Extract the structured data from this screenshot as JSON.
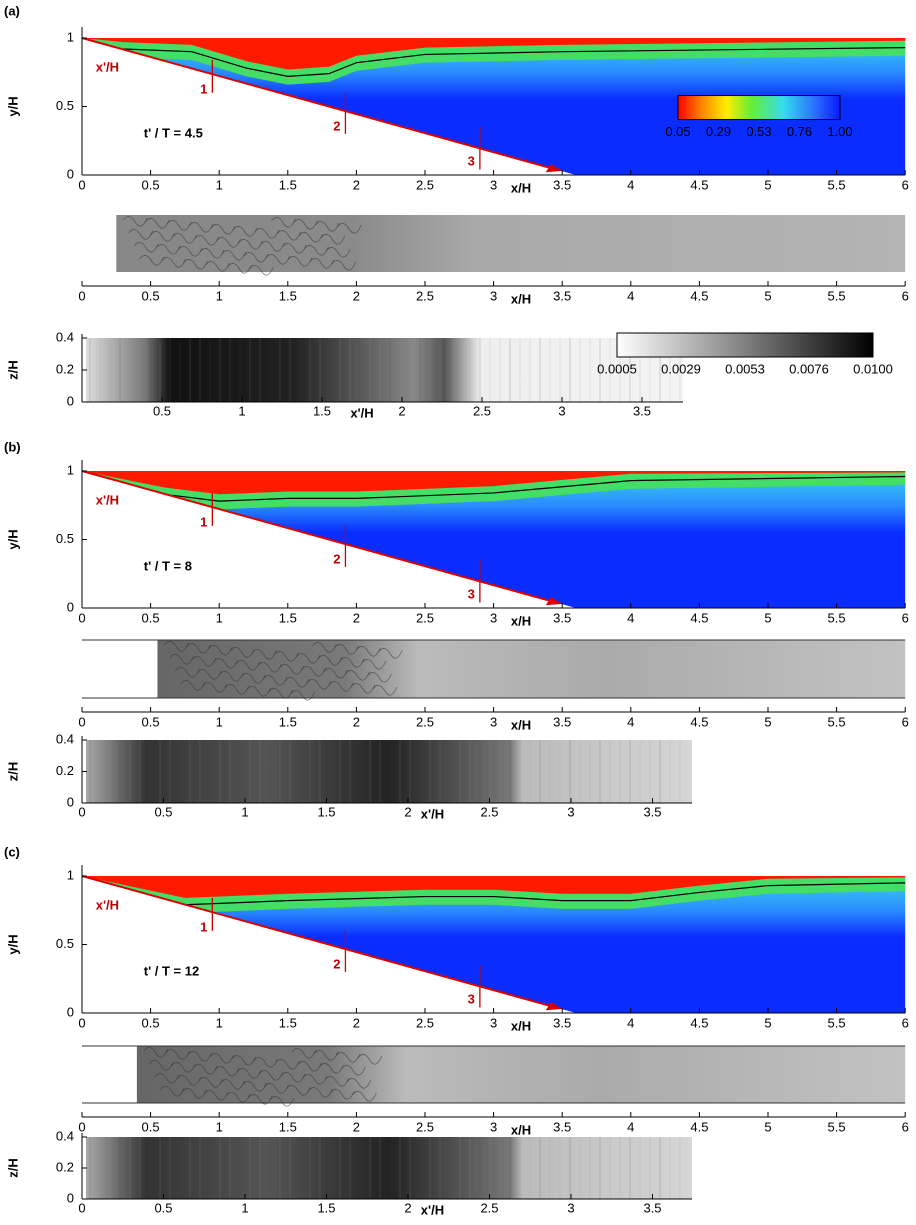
{
  "panels": [
    {
      "label": "(a)",
      "time_label": "t' / T = 4.5",
      "contour": {
        "y_label": "y/H",
        "x_label": "x/H",
        "x_prime_label": "x'/H",
        "yticks": [
          "0",
          "0.5",
          "1"
        ],
        "xticks": [
          "0",
          "0.5",
          "1",
          "1.5",
          "2",
          "2.5",
          "3",
          "3.5",
          "4",
          "4.5",
          "5",
          "5.5",
          "6"
        ],
        "stations": [
          "1",
          "2",
          "3"
        ],
        "colorbar": [
          "0.05",
          "0.29",
          "0.53",
          "0.76",
          "1.00"
        ]
      },
      "plan": {
        "x_label": "x/H",
        "xticks": [
          "0",
          "0.5",
          "1",
          "1.5",
          "2",
          "2.5",
          "3",
          "3.5",
          "4",
          "4.5",
          "5",
          "5.5",
          "6"
        ]
      },
      "spanwise": {
        "y_label": "z/H",
        "x_label": "x'/H",
        "yticks": [
          "0",
          "0.2",
          "0.4"
        ],
        "xticks": [
          "0.5",
          "1",
          "1.5",
          "2",
          "2.5",
          "3",
          "3.5"
        ],
        "colorbar": [
          "0.0005",
          "0.0029",
          "0.0053",
          "0.0076",
          "0.0100"
        ]
      }
    },
    {
      "label": "(b)",
      "time_label": "t' / T = 8",
      "contour": {
        "y_label": "y/H",
        "x_label": "x/H",
        "x_prime_label": "x'/H",
        "yticks": [
          "0",
          "0.5",
          "1"
        ],
        "xticks": [
          "0",
          "0.5",
          "1",
          "1.5",
          "2",
          "2.5",
          "3",
          "3.5",
          "4",
          "4.5",
          "5",
          "5.5",
          "6"
        ],
        "stations": [
          "1",
          "2",
          "3"
        ]
      },
      "plan": {
        "x_label": "x/H",
        "xticks": [
          "0",
          "0.5",
          "1",
          "1.5",
          "2",
          "2.5",
          "3",
          "3.5",
          "4",
          "4.5",
          "5",
          "5.5",
          "6"
        ]
      },
      "spanwise": {
        "y_label": "z/H",
        "x_label": "x'/H",
        "yticks": [
          "0",
          "0.2",
          "0.4"
        ],
        "xticks": [
          "0",
          "0.5",
          "1",
          "1.5",
          "2",
          "2.5",
          "3",
          "3.5"
        ]
      }
    },
    {
      "label": "(c)",
      "time_label": "t' / T = 12",
      "contour": {
        "y_label": "y/H",
        "x_label": "x/H",
        "x_prime_label": "x'/H",
        "yticks": [
          "0",
          "0.5",
          "1"
        ],
        "xticks": [
          "0",
          "0.5",
          "1",
          "1.5",
          "2",
          "2.5",
          "3",
          "3.5",
          "4",
          "4.5",
          "5",
          "5.5",
          "6"
        ],
        "stations": [
          "1",
          "2",
          "3"
        ]
      },
      "plan": {
        "x_label": "x/H",
        "xticks": [
          "0",
          "0.5",
          "1",
          "1.5",
          "2",
          "2.5",
          "3",
          "3.5",
          "4",
          "4.5",
          "5",
          "5.5",
          "6"
        ]
      },
      "spanwise": {
        "y_label": "z/H",
        "x_label": "x'/H",
        "yticks": [
          "0",
          "0.2",
          "0.4"
        ],
        "xticks": [
          "0",
          "0.5",
          "1",
          "1.5",
          "2",
          "2.5",
          "3",
          "3.5"
        ]
      }
    }
  ]
}
